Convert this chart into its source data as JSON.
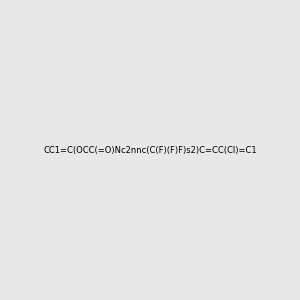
{
  "smiles": "CC1=C(OCC(=O)Nc2nnc(C(F)(F)F)s2)C=CC(Cl)=C1",
  "bg_color": "#e8e8e8",
  "img_size": [
    300,
    300
  ],
  "atom_colors": {
    "N": "#0000ff",
    "O": "#ff0000",
    "S": "#cccc00",
    "F": "#ff00ff",
    "Cl": "#00aa00",
    "C": "#000000",
    "H": "#7f7f7f"
  }
}
